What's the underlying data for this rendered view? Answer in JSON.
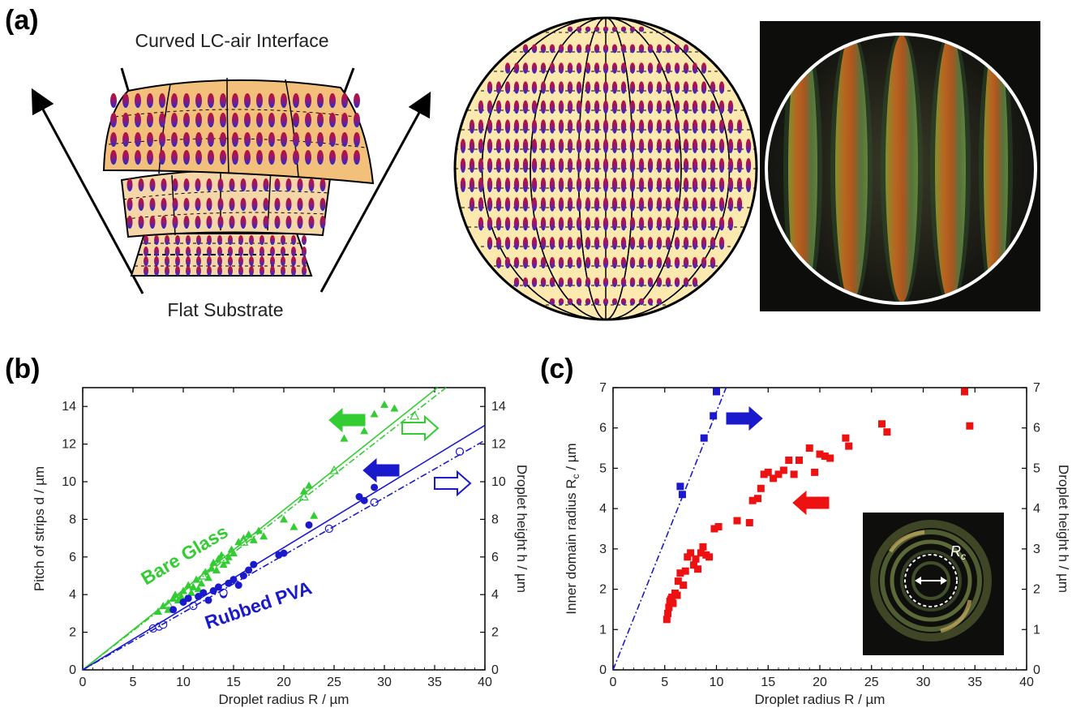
{
  "panel_a": {
    "label": "(a)",
    "top_label": "Curved LC-air Interface",
    "bottom_label": "Flat Substrate"
  },
  "panel_b": {
    "label": "(b)",
    "series_labels": {
      "green": "Bare Glass",
      "blue": "Rubbed PVA"
    }
  },
  "panel_c": {
    "label": "(c)",
    "inset_label": "R",
    "inset_label_sub": "c"
  },
  "colors": {
    "green": "#33cc33",
    "blue": "#1a1acc",
    "red": "#ee1111"
  },
  "chart_data": [
    {
      "type": "scatter",
      "id": "b",
      "xlabel": "Droplet radius R / µm",
      "ylabel": "Pitch of strips d / µm",
      "y2label": "Droplet height h / µm",
      "xlim": [
        0,
        40
      ],
      "ylim": [
        0,
        15
      ],
      "y2lim": [
        0,
        15
      ],
      "xticks": [
        0,
        5,
        10,
        15,
        20,
        25,
        30,
        35,
        40
      ],
      "yticks": [
        0,
        2,
        4,
        6,
        8,
        10,
        12,
        14
      ],
      "y2ticks": [
        0,
        2,
        4,
        6,
        8,
        10,
        12,
        14
      ],
      "grid": false,
      "series": [
        {
          "color": "green",
          "marker": "filled-triangle",
          "axis": "left",
          "x": [
            7.5,
            8.0,
            8.5,
            9.0,
            9.2,
            9.5,
            9.8,
            10.0,
            10.3,
            10.5,
            10.8,
            11.0,
            11.3,
            11.5,
            11.8,
            12.0,
            12.2,
            12.5,
            12.8,
            13.0,
            13.3,
            13.5,
            13.8,
            14.0,
            14.3,
            14.5,
            14.8,
            15.0,
            15.5,
            16.0,
            16.5,
            17.0,
            17.5,
            18.0,
            20.0,
            21.0,
            22.0,
            22.5,
            23.0,
            26.0,
            28.0,
            29.0,
            30.0,
            31.0
          ],
          "y": [
            3.1,
            3.4,
            3.2,
            3.8,
            4.0,
            3.7,
            3.9,
            4.2,
            3.8,
            4.5,
            4.1,
            4.4,
            4.8,
            4.3,
            4.6,
            5.0,
            5.2,
            4.9,
            5.4,
            5.7,
            5.3,
            5.9,
            6.1,
            5.6,
            5.8,
            6.0,
            6.4,
            6.2,
            6.8,
            7.0,
            7.2,
            6.9,
            7.4,
            7.1,
            8.0,
            7.6,
            9.5,
            9.8,
            8.2,
            12.3,
            12.7,
            13.6,
            14.1,
            13.9
          ]
        },
        {
          "color": "green",
          "marker": "open-triangle",
          "axis": "right",
          "x": [
            8.5,
            12.0,
            14.0,
            16.0,
            22.0,
            25.0,
            33.0
          ],
          "y": [
            3.5,
            5.0,
            5.9,
            6.8,
            9.2,
            10.6,
            13.5
          ]
        },
        {
          "color": "green",
          "line": "solid",
          "fit_slope": 0.425
        },
        {
          "color": "green",
          "line": "dash-dot",
          "fit_slope": 0.415
        },
        {
          "color": "blue",
          "marker": "filled-circle",
          "axis": "left",
          "x": [
            9.0,
            10.0,
            10.5,
            11.0,
            11.5,
            12.0,
            12.5,
            13.0,
            13.5,
            14.0,
            14.5,
            15.0,
            15.5,
            16.0,
            16.5,
            17.0,
            19.5,
            20.0,
            22.5,
            27.5,
            28.0,
            29.0
          ],
          "y": [
            3.2,
            3.6,
            3.8,
            3.4,
            3.9,
            4.1,
            3.7,
            4.2,
            4.4,
            4.0,
            4.6,
            4.8,
            4.5,
            5.0,
            5.3,
            5.6,
            6.1,
            6.2,
            7.7,
            9.2,
            9.0,
            9.7
          ]
        },
        {
          "color": "blue",
          "marker": "open-circle",
          "axis": "right",
          "x": [
            7.0,
            7.6,
            8.0,
            11.0,
            14.0,
            24.5,
            29.0,
            37.5
          ],
          "y": [
            2.2,
            2.3,
            2.4,
            3.4,
            4.1,
            7.5,
            8.9,
            11.6
          ]
        },
        {
          "color": "blue",
          "line": "solid",
          "fit_slope": 0.325
        },
        {
          "color": "blue",
          "line": "dash-dot",
          "fit_slope": 0.305
        }
      ]
    },
    {
      "type": "scatter",
      "id": "c",
      "xlabel": "Droplet radius R / µm",
      "ylabel": "Inner domain radius R",
      "ylabel_sub": "c",
      "ylabel_unit": " / µm",
      "y2label": "Droplet height h / µm",
      "xlim": [
        0,
        40
      ],
      "ylim": [
        0,
        7
      ],
      "y2lim": [
        0,
        7
      ],
      "xticks": [
        0,
        5,
        10,
        15,
        20,
        25,
        30,
        35,
        40
      ],
      "yticks": [
        0,
        1,
        2,
        3,
        4,
        5,
        6,
        7
      ],
      "y2ticks": [
        0,
        1,
        2,
        3,
        4,
        5,
        6,
        7
      ],
      "grid": false,
      "series": [
        {
          "color": "red",
          "marker": "filled-square",
          "axis": "left",
          "x": [
            5.2,
            5.3,
            5.4,
            5.5,
            5.6,
            5.7,
            5.8,
            6.0,
            6.2,
            6.3,
            6.5,
            6.8,
            7.0,
            7.2,
            7.5,
            7.8,
            8.0,
            8.2,
            8.5,
            8.7,
            9.0,
            9.3,
            9.8,
            10.2,
            12.0,
            13.2,
            13.5,
            14.0,
            14.3,
            14.6,
            15.0,
            15.5,
            16.0,
            16.5,
            17.0,
            17.5,
            18.0,
            19.0,
            19.5,
            20.0,
            20.5,
            21.0,
            22.5,
            22.8,
            26.0,
            26.5,
            34.0,
            34.5
          ],
          "y": [
            1.25,
            1.4,
            1.55,
            1.7,
            1.75,
            1.8,
            1.65,
            1.9,
            1.85,
            2.2,
            2.4,
            2.1,
            2.45,
            2.8,
            2.9,
            2.6,
            2.75,
            2.5,
            2.9,
            3.05,
            2.85,
            2.8,
            3.5,
            3.55,
            3.7,
            3.65,
            4.2,
            4.25,
            4.5,
            4.85,
            4.9,
            4.75,
            4.85,
            4.95,
            5.2,
            4.85,
            5.2,
            5.5,
            4.9,
            5.35,
            5.3,
            5.25,
            5.75,
            5.55,
            6.1,
            5.9,
            6.9,
            6.05
          ]
        },
        {
          "color": "blue",
          "marker": "filled-square",
          "axis": "right",
          "x": [
            6.5,
            6.7,
            8.8,
            9.7,
            10.0
          ],
          "y": [
            4.55,
            4.35,
            5.75,
            6.3,
            6.9
          ]
        },
        {
          "color": "blue",
          "line": "dash-dot",
          "fit_slope": 0.64
        }
      ]
    }
  ]
}
